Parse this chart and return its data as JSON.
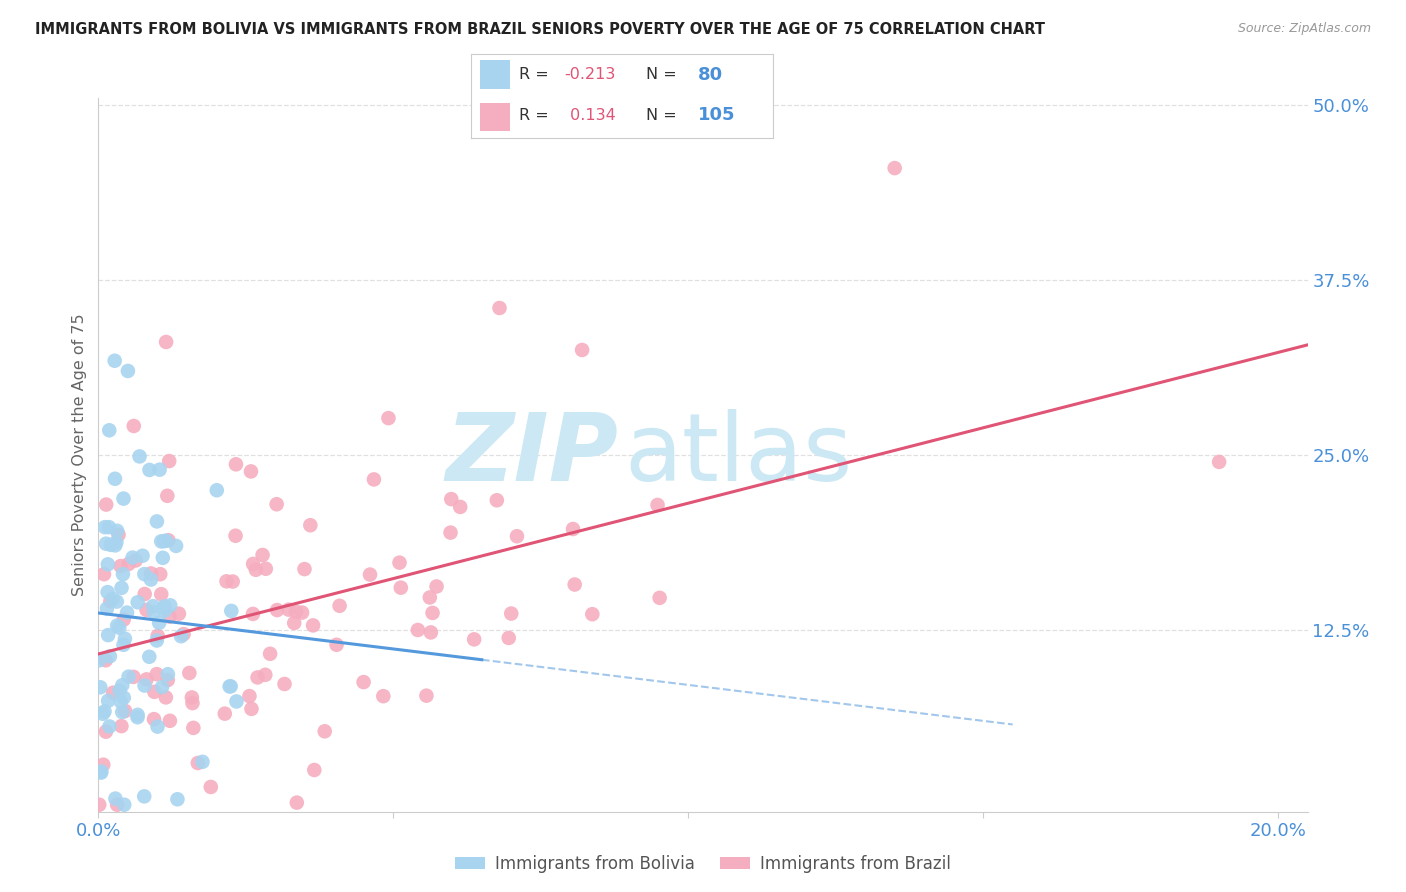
{
  "title": "IMMIGRANTS FROM BOLIVIA VS IMMIGRANTS FROM BRAZIL SENIORS POVERTY OVER THE AGE OF 75 CORRELATION CHART",
  "source": "Source: ZipAtlas.com",
  "ylabel": "Seniors Poverty Over the Age of 75",
  "right_yticks": [
    "50.0%",
    "37.5%",
    "25.0%",
    "12.5%"
  ],
  "right_ytick_vals": [
    0.5,
    0.375,
    0.25,
    0.125
  ],
  "bolivia_R": -0.213,
  "bolivia_N": 80,
  "brazil_R": 0.134,
  "brazil_N": 105,
  "bolivia_color": "#a8d4f0",
  "brazil_color": "#f5aec0",
  "bolivia_line_color": "#5599dd",
  "brazil_line_color": "#e05575",
  "watermark_zip": "ZIP",
  "watermark_atlas": "atlas",
  "watermark_color": "#cce8f4",
  "bg_color": "#ffffff",
  "grid_color": "#dddddd",
  "title_color": "#222222",
  "axis_label_color": "#4a90d9",
  "tick_color": "#888888",
  "legend_label1": "Immigrants from Bolivia",
  "legend_label2": "Immigrants from Brazil",
  "xlim": [
    0.0,
    0.205
  ],
  "ylim": [
    -0.005,
    0.505
  ],
  "seed": 12345
}
